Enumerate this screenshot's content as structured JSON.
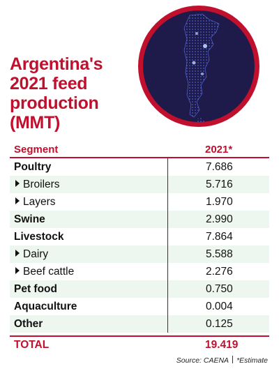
{
  "title": "Argentina's 2021 feed production (MMT)",
  "colors": {
    "accent": "#c0102e",
    "row_stripe": "#eef7ef",
    "map_background": "#1e1b4b",
    "map_dots": "#4a5fd0"
  },
  "map_icon": "argentina-map-icon",
  "chart_data": {
    "type": "table",
    "columns": [
      "Segment",
      "2021*"
    ],
    "rows": [
      {
        "segment": "Poultry",
        "value": "7.686",
        "level": "main"
      },
      {
        "segment": "Broilers",
        "value": "5.716",
        "level": "sub"
      },
      {
        "segment": "Layers",
        "value": "1.970",
        "level": "sub"
      },
      {
        "segment": "Swine",
        "value": "2.990",
        "level": "main"
      },
      {
        "segment": "Livestock",
        "value": "7.864",
        "level": "main"
      },
      {
        "segment": "Dairy",
        "value": "5.588",
        "level": "sub"
      },
      {
        "segment": "Beef cattle",
        "value": "2.276",
        "level": "sub"
      },
      {
        "segment": "Pet food",
        "value": "0.750",
        "level": "main"
      },
      {
        "segment": "Aquaculture",
        "value": "0.004",
        "level": "main"
      },
      {
        "segment": "Other",
        "value": "0.125",
        "level": "main"
      }
    ],
    "total": {
      "label": "TOTAL",
      "value": "19.419"
    }
  },
  "source": "Source: CAENA",
  "footnote": "*Estimate"
}
